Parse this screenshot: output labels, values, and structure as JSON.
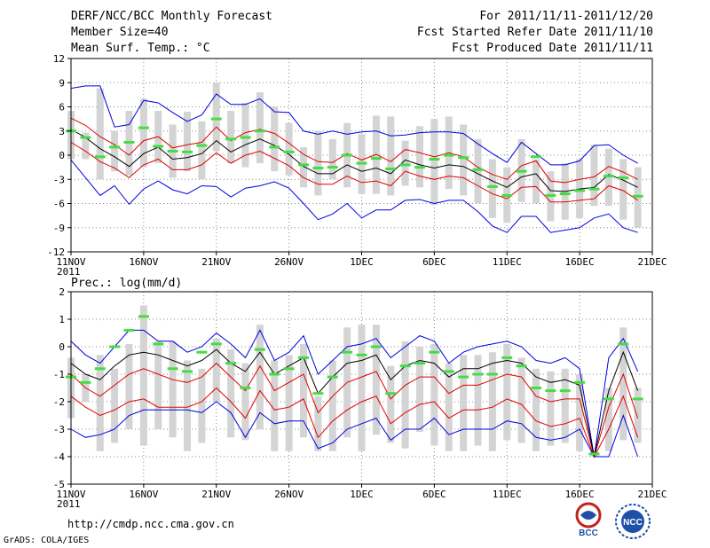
{
  "header": {
    "title": "DERF/NCC/BCC Monthly Forecast",
    "member": "Member Size=40",
    "variable": "Mean Surf. Temp.: °C",
    "period": "For 2011/11/11-2011/12/20",
    "started": "Fcst Started Refer Date 2011/11/10",
    "produced": "Fcst Produced Date 2011/11/11"
  },
  "footer": {
    "url": "http://cmdp.ncc.cma.gov.cn",
    "grads": "GrADS: COLA/IGES",
    "logo1": "BCC",
    "logo2": "NCC"
  },
  "colors": {
    "max_min": "#0000e0",
    "spread": "#e00000",
    "mean": "#000000",
    "box": "#d4d4d4",
    "median": "#44dd44",
    "grid": "#888888"
  },
  "chart_data": [
    {
      "type": "box-ensemble",
      "title": "Mean Surf. Temp.: °C",
      "ylim": [
        -12,
        12
      ],
      "yticks": [
        -12,
        -9,
        -6,
        -3,
        0,
        3,
        6,
        9,
        12
      ],
      "xlim": [
        0,
        40
      ],
      "xticks": [
        {
          "x": 0,
          "label": "11NOV",
          "sub": "2011"
        },
        {
          "x": 5,
          "label": "16NOV"
        },
        {
          "x": 10,
          "label": "21NOV"
        },
        {
          "x": 15,
          "label": "26NOV"
        },
        {
          "x": 20,
          "label": "1DEC"
        },
        {
          "x": 25,
          "label": "6DEC"
        },
        {
          "x": 30,
          "label": "11DEC"
        },
        {
          "x": 35,
          "label": "16DEC"
        },
        {
          "x": 40,
          "label": "21DEC"
        }
      ],
      "days": [
        0,
        1,
        2,
        3,
        4,
        5,
        6,
        7,
        8,
        9,
        10,
        11,
        12,
        13,
        14,
        15,
        16,
        17,
        18,
        19,
        20,
        21,
        22,
        23,
        24,
        25,
        26,
        27,
        28,
        29,
        30,
        31,
        32,
        33,
        34,
        35,
        36,
        37,
        38,
        39
      ],
      "max": [
        8.3,
        8.6,
        8.6,
        3.5,
        3.8,
        6.8,
        6.5,
        5.3,
        4.2,
        5.0,
        7.6,
        6.3,
        6.3,
        7.0,
        5.4,
        5.3,
        3.0,
        2.6,
        3.0,
        2.6,
        2.9,
        3.0,
        2.4,
        2.5,
        2.8,
        2.9,
        2.9,
        2.7,
        1.4,
        0.2,
        -0.9,
        1.6,
        0.2,
        -1.2,
        -1.2,
        -0.7,
        1.2,
        1.3,
        0.0,
        -1.0
      ],
      "mean": [
        3.2,
        2.2,
        0.8,
        -0.2,
        -1.4,
        0.2,
        1.0,
        -0.5,
        -0.3,
        0.2,
        1.8,
        0.4,
        1.3,
        2.0,
        1.2,
        0.1,
        -1.4,
        -2.3,
        -2.3,
        -1.2,
        -2.0,
        -1.6,
        -2.3,
        -0.6,
        -1.2,
        -1.6,
        -1.2,
        -1.4,
        -2.3,
        -3.2,
        -4.0,
        -2.7,
        -2.3,
        -4.4,
        -4.5,
        -4.2,
        -4.0,
        -2.4,
        -3.1,
        -4.0
      ],
      "p_upper": [
        4.6,
        3.7,
        2.3,
        1.3,
        0.0,
        1.8,
        2.3,
        0.9,
        1.3,
        1.6,
        3.5,
        1.8,
        2.8,
        3.2,
        2.7,
        1.5,
        0.1,
        -0.8,
        -0.9,
        0.2,
        -0.6,
        0.1,
        -0.8,
        0.7,
        0.3,
        -0.2,
        0.3,
        -0.2,
        -1.5,
        -2.4,
        -3.0,
        -1.3,
        -0.7,
        -3.2,
        -3.4,
        -3.0,
        -2.7,
        -1.4,
        -2.1,
        -3.0
      ],
      "p_lower": [
        1.6,
        0.5,
        -0.8,
        -1.6,
        -2.8,
        -1.2,
        -0.5,
        -1.8,
        -1.8,
        -1.2,
        0.3,
        -1.0,
        0.0,
        0.5,
        -0.4,
        -1.3,
        -2.8,
        -3.6,
        -3.6,
        -2.6,
        -3.4,
        -3.2,
        -3.8,
        -2.0,
        -2.6,
        -3.0,
        -2.6,
        -2.8,
        -3.8,
        -4.8,
        -5.4,
        -4.0,
        -3.9,
        -5.8,
        -5.8,
        -5.6,
        -5.4,
        -3.8,
        -4.4,
        -5.6
      ],
      "min": [
        -0.6,
        -2.8,
        -5.0,
        -3.8,
        -6.1,
        -4.2,
        -3.2,
        -4.3,
        -4.8,
        -3.8,
        -3.9,
        -5.2,
        -4.1,
        -3.8,
        -3.3,
        -4.1,
        -6.0,
        -8.0,
        -7.3,
        -6.0,
        -7.8,
        -6.8,
        -6.8,
        -5.6,
        -5.5,
        -6.0,
        -5.6,
        -5.6,
        -7.0,
        -8.8,
        -9.6,
        -7.6,
        -7.6,
        -9.6,
        -9.3,
        -9.0,
        -7.8,
        -7.3,
        -9.0,
        -9.6
      ],
      "box_top": [
        5.5,
        2.8,
        8.3,
        3.0,
        5.5,
        7.0,
        5.5,
        3.8,
        5.4,
        4.2,
        9.0,
        5.5,
        6.5,
        7.8,
        6.0,
        4.0,
        1.0,
        3.0,
        2.0,
        4.0,
        2.6,
        4.9,
        4.8,
        1.8,
        3.6,
        4.5,
        4.8,
        3.8,
        2.0,
        -0.5,
        -1.5,
        2.0,
        -0.5,
        -2.0,
        -1.0,
        -0.5,
        1.3,
        0.8,
        -0.5,
        -1.5
      ],
      "box_bot": [
        -0.5,
        -0.5,
        -3.0,
        -2.0,
        -2.5,
        -1.5,
        -1.0,
        -2.8,
        -2.0,
        -3.0,
        0.5,
        -1.0,
        -1.5,
        -1.0,
        -2.0,
        -2.5,
        -4.0,
        -5.0,
        -3.0,
        -4.0,
        -4.8,
        -4.8,
        -5.0,
        -3.8,
        -4.0,
        -6.2,
        -4.2,
        -5.0,
        -6.0,
        -7.8,
        -8.4,
        -5.8,
        -6.0,
        -8.2,
        -8.0,
        -7.8,
        -6.3,
        -6.3,
        -8.0,
        -9.0
      ],
      "median": [
        3.0,
        2.2,
        -0.2,
        1.0,
        1.6,
        3.4,
        1.1,
        0.5,
        0.4,
        1.2,
        4.5,
        2.0,
        2.2,
        3.0,
        1.0,
        0.4,
        -1.2,
        -1.6,
        -1.5,
        0.0,
        -1.0,
        -0.4,
        -1.7,
        -1.2,
        -1.5,
        -0.5,
        0.0,
        -0.3,
        -1.8,
        -3.9,
        -5.0,
        -2.0,
        -0.2,
        -5.0,
        -4.8,
        -4.4,
        -4.2,
        -2.6,
        -2.8,
        -5.1
      ]
    },
    {
      "type": "box-ensemble",
      "title": "Prec.: log(mm/d)",
      "ylim": [
        -5,
        2
      ],
      "yticks": [
        -5,
        -4,
        -3,
        -2,
        -1,
        0,
        1,
        2
      ],
      "xlim": [
        0,
        40
      ],
      "xticks": [
        {
          "x": 0,
          "label": "11NOV",
          "sub": "2011"
        },
        {
          "x": 5,
          "label": "16NOV"
        },
        {
          "x": 10,
          "label": "21NOV"
        },
        {
          "x": 15,
          "label": "26NOV"
        },
        {
          "x": 20,
          "label": "1DEC"
        },
        {
          "x": 25,
          "label": "6DEC"
        },
        {
          "x": 30,
          "label": "11DEC"
        },
        {
          "x": 35,
          "label": "16DEC"
        },
        {
          "x": 40,
          "label": "21DEC"
        }
      ],
      "days": [
        0,
        1,
        2,
        3,
        4,
        5,
        6,
        7,
        8,
        9,
        10,
        11,
        12,
        13,
        14,
        15,
        16,
        17,
        18,
        19,
        20,
        21,
        22,
        23,
        24,
        25,
        26,
        27,
        28,
        29,
        30,
        31,
        32,
        33,
        34,
        35,
        36,
        37,
        38,
        39
      ],
      "max": [
        0.2,
        -0.3,
        -0.6,
        0.0,
        0.6,
        0.6,
        0.2,
        0.2,
        -0.2,
        0.0,
        0.5,
        0.1,
        -0.4,
        0.6,
        -0.5,
        -0.2,
        0.4,
        -1.0,
        -0.5,
        0.0,
        0.1,
        0.3,
        -0.4,
        0.0,
        0.4,
        0.2,
        -0.6,
        -0.2,
        0.0,
        0.1,
        0.2,
        0.0,
        -0.5,
        -0.6,
        -0.4,
        -0.8,
        -4.0,
        -0.4,
        0.3,
        -0.9
      ],
      "mean": [
        -0.6,
        -1.0,
        -1.2,
        -0.7,
        -0.3,
        -0.2,
        -0.3,
        -0.5,
        -0.7,
        -0.5,
        -0.1,
        -0.6,
        -0.9,
        -0.2,
        -1.0,
        -0.7,
        -0.4,
        -1.7,
        -1.1,
        -0.6,
        -0.5,
        -0.3,
        -1.2,
        -0.7,
        -0.5,
        -0.6,
        -1.1,
        -0.8,
        -0.8,
        -0.6,
        -0.5,
        -0.6,
        -1.1,
        -1.3,
        -1.2,
        -1.4,
        -4.0,
        -1.6,
        -0.2,
        -1.6
      ],
      "p_upper": [
        -1.0,
        -1.5,
        -1.8,
        -1.4,
        -1.0,
        -0.8,
        -1.0,
        -1.2,
        -1.3,
        -1.1,
        -0.6,
        -1.1,
        -1.6,
        -0.7,
        -1.6,
        -1.3,
        -1.0,
        -2.4,
        -1.8,
        -1.3,
        -1.1,
        -0.9,
        -1.9,
        -1.4,
        -1.1,
        -1.1,
        -1.7,
        -1.4,
        -1.4,
        -1.2,
        -1.0,
        -1.1,
        -1.8,
        -2.0,
        -1.9,
        -1.9,
        -4.0,
        -2.2,
        -1.0,
        -2.6
      ],
      "p_lower": [
        -1.8,
        -2.2,
        -2.5,
        -2.3,
        -2.0,
        -1.9,
        -2.2,
        -2.2,
        -2.2,
        -2.0,
        -1.5,
        -2.0,
        -2.6,
        -1.6,
        -2.3,
        -2.2,
        -1.9,
        -3.3,
        -2.7,
        -2.3,
        -2.0,
        -1.8,
        -2.8,
        -2.4,
        -2.1,
        -2.0,
        -2.6,
        -2.3,
        -2.3,
        -2.2,
        -1.9,
        -2.1,
        -2.7,
        -2.9,
        -2.8,
        -2.6,
        -4.0,
        -3.0,
        -1.8,
        -3.3
      ],
      "min": [
        -3.0,
        -3.3,
        -3.2,
        -3.0,
        -2.5,
        -2.3,
        -2.3,
        -2.3,
        -2.3,
        -2.4,
        -2.0,
        -2.4,
        -3.3,
        -2.4,
        -2.8,
        -2.7,
        -2.7,
        -3.7,
        -3.5,
        -3.0,
        -2.8,
        -2.6,
        -3.4,
        -3.0,
        -3.0,
        -2.6,
        -3.2,
        -3.0,
        -3.0,
        -3.0,
        -2.7,
        -2.8,
        -3.3,
        -3.4,
        -3.3,
        -3.0,
        -4.0,
        -4.0,
        -2.5,
        -4.0
      ],
      "box_top": [
        -0.4,
        -1.0,
        -0.3,
        -0.8,
        0.1,
        1.5,
        0.2,
        0.2,
        -0.5,
        -0.8,
        0.3,
        -0.1,
        -0.6,
        0.8,
        -0.5,
        -0.3,
        0.1,
        -1.8,
        -0.5,
        0.7,
        0.8,
        0.8,
        -0.7,
        0.2,
        0.0,
        0.1,
        -0.6,
        -0.3,
        -0.3,
        -0.2,
        0.1,
        -0.4,
        -0.8,
        -0.9,
        -0.8,
        -1.0,
        -3.8,
        -1.5,
        0.7,
        -1.5
      ],
      "box_bot": [
        -2.6,
        -2.0,
        -3.8,
        -3.5,
        -3.0,
        -3.6,
        -3.0,
        -3.3,
        -3.8,
        -3.5,
        -2.0,
        -3.3,
        -3.4,
        -3.0,
        -3.8,
        -3.8,
        -3.3,
        -3.8,
        -3.8,
        -3.3,
        -3.8,
        -3.2,
        -3.5,
        -3.7,
        -3.1,
        -3.6,
        -3.8,
        -3.8,
        -3.6,
        -3.8,
        -3.4,
        -3.5,
        -3.8,
        -3.6,
        -3.5,
        -3.8,
        -4.0,
        -3.8,
        -3.4,
        -3.5
      ],
      "median": [
        -1.1,
        -1.3,
        -0.8,
        0.0,
        0.6,
        1.1,
        0.1,
        -0.8,
        -0.9,
        -0.2,
        0.1,
        -0.6,
        -1.5,
        -0.1,
        -1.0,
        -0.8,
        -0.4,
        -1.7,
        -1.1,
        -0.2,
        -0.3,
        0.0,
        -1.7,
        -0.7,
        -0.6,
        -0.2,
        -0.9,
        -1.1,
        -1.0,
        -1.0,
        -0.4,
        -0.7,
        -1.5,
        -1.6,
        -1.6,
        -1.3,
        -3.9,
        -1.9,
        0.1,
        -1.9
      ]
    }
  ]
}
